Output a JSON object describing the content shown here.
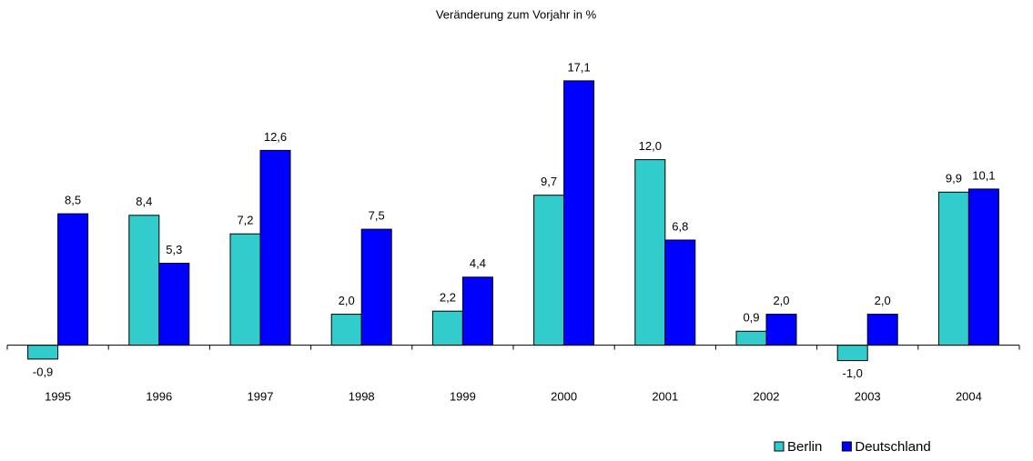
{
  "chart_data": {
    "type": "bar",
    "title": "Veränderung zum Vorjahr in %",
    "categories": [
      "1995",
      "1996",
      "1997",
      "1998",
      "1999",
      "2000",
      "2001",
      "2002",
      "2003",
      "2004"
    ],
    "series": [
      {
        "name": "Berlin",
        "color": "#33cccc",
        "values": [
          -0.9,
          8.4,
          7.2,
          2.0,
          2.2,
          9.7,
          12.0,
          0.9,
          -1.0,
          9.9
        ],
        "value_labels": [
          "-0,9",
          "8,4",
          "7,2",
          "2,0",
          "2,2",
          "9,7",
          "12,0",
          "0,9",
          "-1,0",
          "9,9"
        ]
      },
      {
        "name": "Deutschland",
        "color": "#0000ff",
        "values": [
          8.5,
          5.3,
          12.6,
          7.5,
          4.4,
          17.1,
          6.8,
          2.0,
          2.0,
          10.1
        ],
        "value_labels": [
          "8,5",
          "5,3",
          "12,6",
          "7,5",
          "4,4",
          "17,1",
          "6,8",
          "2,0",
          "2,0",
          "10,1"
        ]
      }
    ],
    "ylim": [
      -1.2,
      18.8
    ],
    "legend": "bottom-right"
  }
}
